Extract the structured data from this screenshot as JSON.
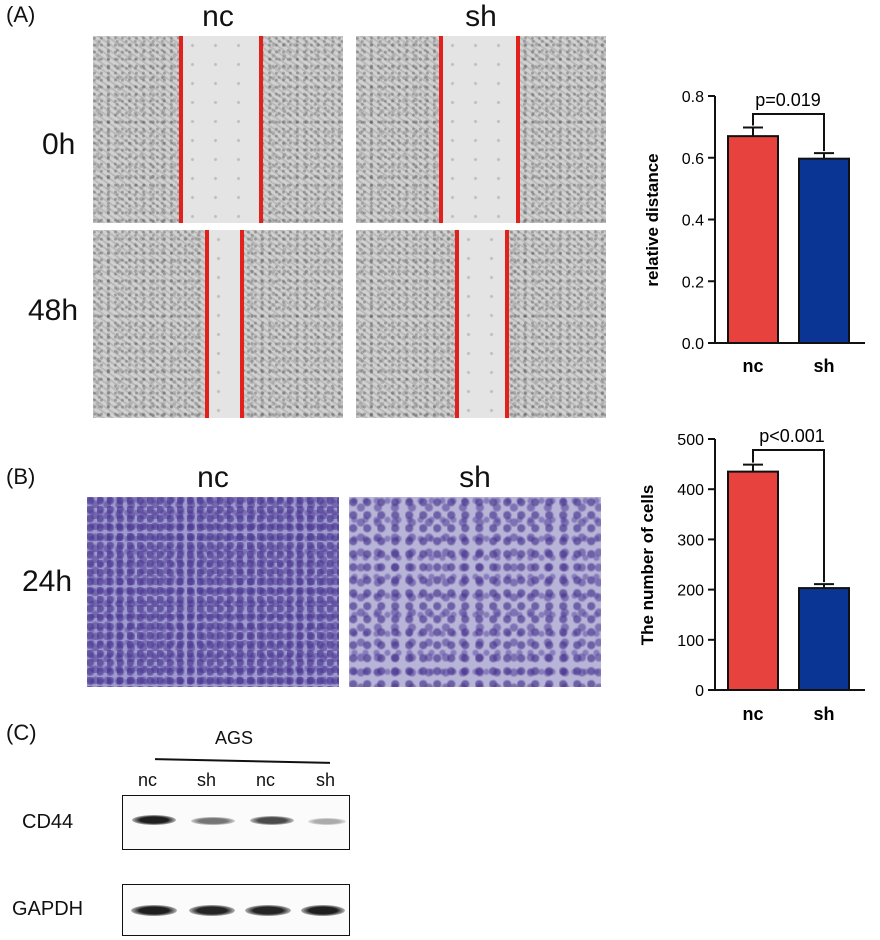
{
  "panelA": {
    "letter": "(A)",
    "col_labels": [
      "nc",
      "sh"
    ],
    "row_labels": [
      "0h",
      "48h"
    ]
  },
  "panelB": {
    "letter": "(B)",
    "col_labels": [
      "nc",
      "sh"
    ],
    "row_label": "24h"
  },
  "panelC": {
    "letter": "(C)",
    "cell_line": "AGS",
    "lanes": [
      "nc",
      "sh",
      "nc",
      "sh"
    ],
    "proteins": [
      "CD44",
      "GAPDH"
    ],
    "band_intensity": {
      "CD44": [
        0.95,
        0.55,
        0.75,
        0.3
      ],
      "GAPDH": [
        0.95,
        0.92,
        0.92,
        0.95
      ]
    }
  },
  "colors": {
    "nc": "#e8423f",
    "sh": "#0a3594",
    "scratch_line": "#e3211c"
  },
  "chart_data": [
    {
      "type": "bar",
      "categories": [
        "nc",
        "sh"
      ],
      "values": [
        0.67,
        0.597
      ],
      "errors": [
        0.028,
        0.018
      ],
      "ylabel": "relative distance",
      "ylim": [
        0,
        0.8
      ],
      "yticks": [
        "0.0",
        "0.2",
        "0.4",
        "0.6",
        "0.8"
      ],
      "annotation": "p=0.019"
    },
    {
      "type": "bar",
      "categories": [
        "nc",
        "sh"
      ],
      "values": [
        435,
        203
      ],
      "errors": [
        14,
        8
      ],
      "ylabel": "The number of cells",
      "ylim": [
        0,
        500
      ],
      "yticks": [
        "0",
        "100",
        "200",
        "300",
        "400",
        "500"
      ],
      "annotation": "p<0.001"
    }
  ]
}
